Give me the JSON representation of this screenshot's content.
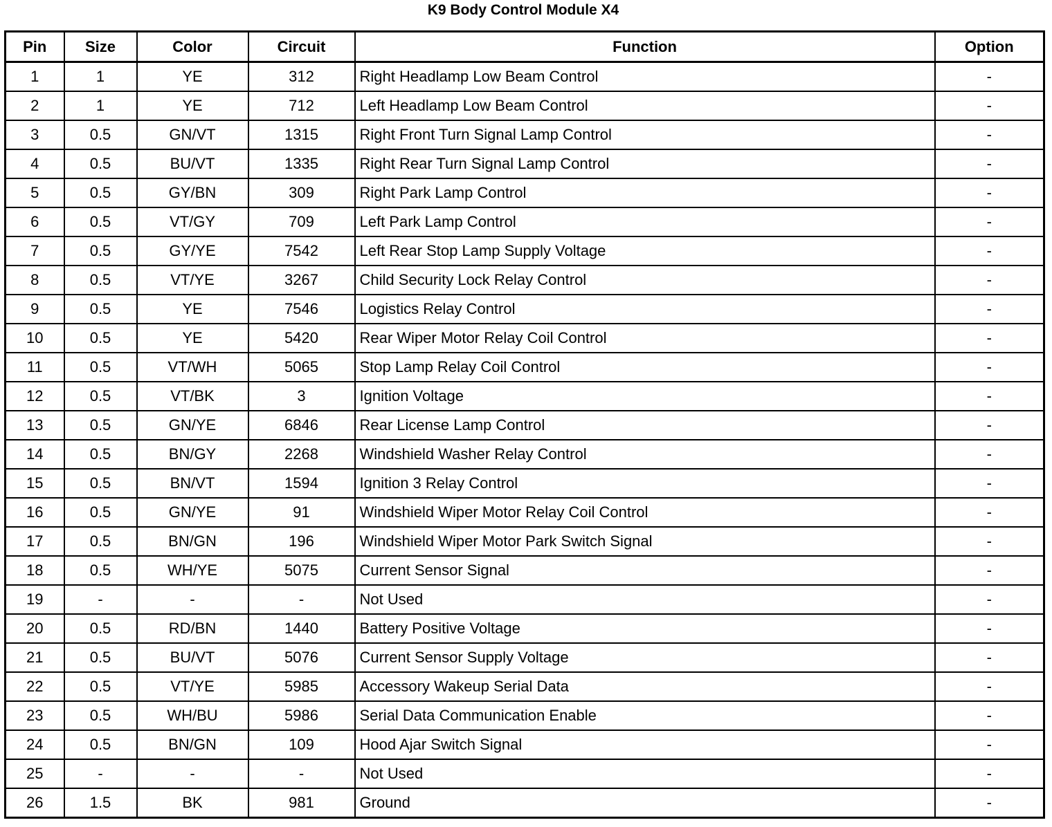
{
  "title": "K9 Body Control Module X4",
  "columns": [
    "Pin",
    "Size",
    "Color",
    "Circuit",
    "Function",
    "Option"
  ],
  "rows": [
    [
      "1",
      "1",
      "YE",
      "312",
      "Right Headlamp Low Beam Control",
      "-"
    ],
    [
      "2",
      "1",
      "YE",
      "712",
      "Left Headlamp Low Beam Control",
      "-"
    ],
    [
      "3",
      "0.5",
      "GN/VT",
      "1315",
      "Right Front Turn Signal Lamp Control",
      "-"
    ],
    [
      "4",
      "0.5",
      "BU/VT",
      "1335",
      "Right Rear Turn Signal Lamp Control",
      "-"
    ],
    [
      "5",
      "0.5",
      "GY/BN",
      "309",
      "Right Park Lamp Control",
      "-"
    ],
    [
      "6",
      "0.5",
      "VT/GY",
      "709",
      "Left Park Lamp Control",
      "-"
    ],
    [
      "7",
      "0.5",
      "GY/YE",
      "7542",
      "Left Rear Stop Lamp Supply Voltage",
      "-"
    ],
    [
      "8",
      "0.5",
      "VT/YE",
      "3267",
      "Child Security Lock Relay Control",
      "-"
    ],
    [
      "9",
      "0.5",
      "YE",
      "7546",
      "Logistics Relay Control",
      "-"
    ],
    [
      "10",
      "0.5",
      "YE",
      "5420",
      "Rear Wiper Motor Relay Coil Control",
      "-"
    ],
    [
      "11",
      "0.5",
      "VT/WH",
      "5065",
      "Stop Lamp Relay Coil Control",
      "-"
    ],
    [
      "12",
      "0.5",
      "VT/BK",
      "3",
      "Ignition Voltage",
      "-"
    ],
    [
      "13",
      "0.5",
      "GN/YE",
      "6846",
      "Rear License Lamp Control",
      "-"
    ],
    [
      "14",
      "0.5",
      "BN/GY",
      "2268",
      "Windshield Washer Relay Control",
      "-"
    ],
    [
      "15",
      "0.5",
      "BN/VT",
      "1594",
      "Ignition 3 Relay Control",
      "-"
    ],
    [
      "16",
      "0.5",
      "GN/YE",
      "91",
      "Windshield Wiper Motor Relay Coil Control",
      "-"
    ],
    [
      "17",
      "0.5",
      "BN/GN",
      "196",
      "Windshield Wiper Motor Park Switch Signal",
      "-"
    ],
    [
      "18",
      "0.5",
      "WH/YE",
      "5075",
      "Current Sensor Signal",
      "-"
    ],
    [
      "19",
      "-",
      "-",
      "-",
      "Not Used",
      "-"
    ],
    [
      "20",
      "0.5",
      "RD/BN",
      "1440",
      "Battery Positive Voltage",
      "-"
    ],
    [
      "21",
      "0.5",
      "BU/VT",
      "5076",
      "Current Sensor Supply Voltage",
      "-"
    ],
    [
      "22",
      "0.5",
      "VT/YE",
      "5985",
      "Accessory Wakeup Serial Data",
      "-"
    ],
    [
      "23",
      "0.5",
      "WH/BU",
      "5986",
      "Serial Data Communication Enable",
      "-"
    ],
    [
      "24",
      "0.5",
      "BN/GN",
      "109",
      "Hood Ajar Switch Signal",
      "-"
    ],
    [
      "25",
      "-",
      "-",
      "-",
      "Not Used",
      "-"
    ],
    [
      "26",
      "1.5",
      "BK",
      "981",
      "Ground",
      "-"
    ]
  ]
}
